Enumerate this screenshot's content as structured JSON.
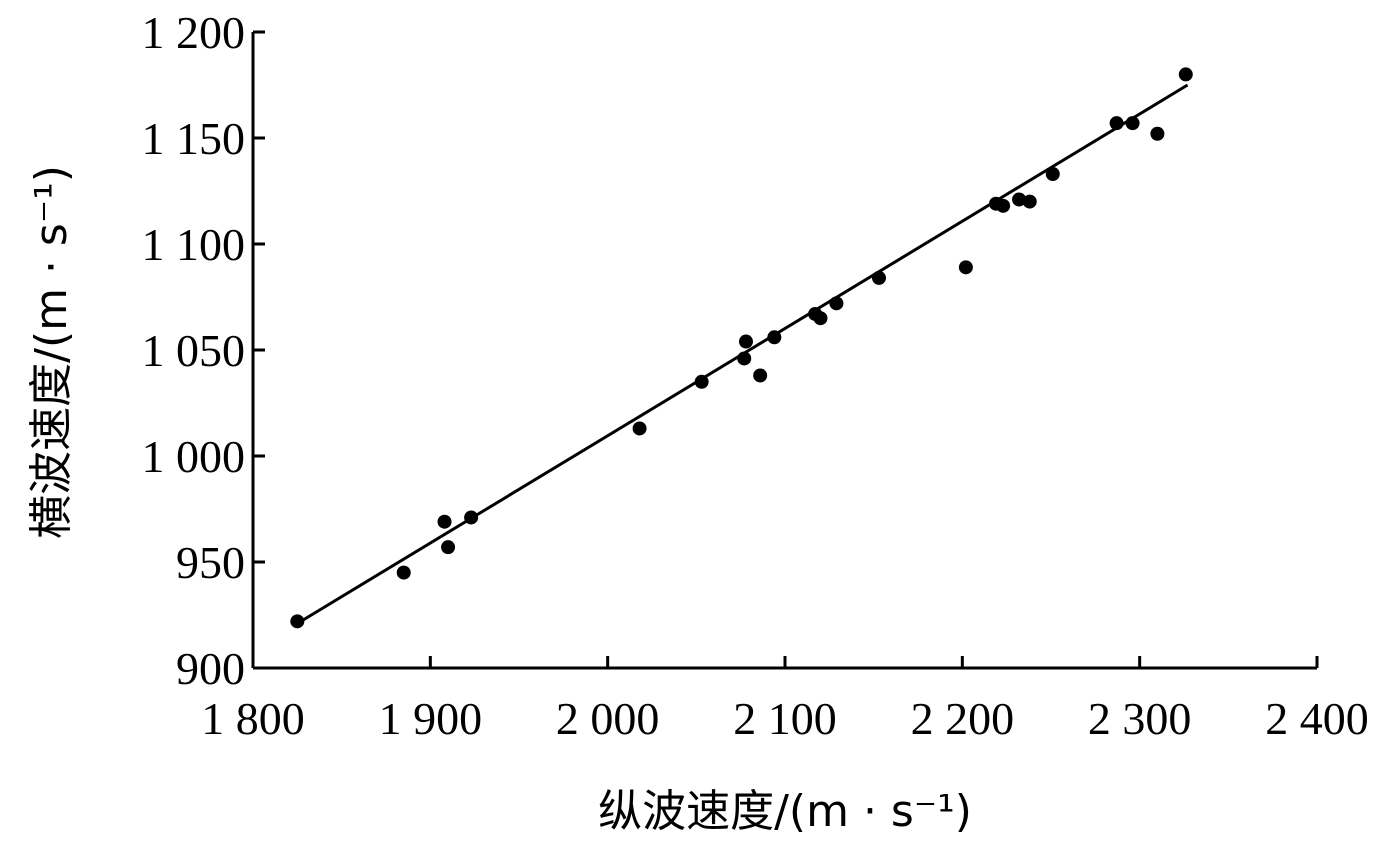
{
  "chart_data": {
    "type": "scatter",
    "title": "",
    "xlabel": "纵波速度/(m · s⁻¹)",
    "ylabel": "横波速度/(m · s⁻¹)",
    "xlim": [
      1800,
      2400
    ],
    "ylim": [
      900,
      1200
    ],
    "x_ticks": [
      1800,
      1900,
      2000,
      2100,
      2200,
      2300,
      2400
    ],
    "x_tick_labels": [
      "1 800",
      "1 900",
      "2 000",
      "2 100",
      "2 200",
      "2 300",
      "2 400"
    ],
    "y_ticks": [
      900,
      950,
      1000,
      1050,
      1100,
      1150,
      1200
    ],
    "y_tick_labels": [
      "900",
      "950",
      "1 000",
      "1 050",
      "1 100",
      "1 150",
      "1 200"
    ],
    "grid": false,
    "legend": false,
    "points": [
      {
        "x": 1825,
        "y": 922
      },
      {
        "x": 1885,
        "y": 945
      },
      {
        "x": 1908,
        "y": 969
      },
      {
        "x": 1910,
        "y": 957
      },
      {
        "x": 1923,
        "y": 971
      },
      {
        "x": 2018,
        "y": 1013
      },
      {
        "x": 2053,
        "y": 1035
      },
      {
        "x": 2077,
        "y": 1046
      },
      {
        "x": 2078,
        "y": 1054
      },
      {
        "x": 2086,
        "y": 1038
      },
      {
        "x": 2094,
        "y": 1056
      },
      {
        "x": 2117,
        "y": 1067
      },
      {
        "x": 2120,
        "y": 1065
      },
      {
        "x": 2129,
        "y": 1072
      },
      {
        "x": 2153,
        "y": 1084
      },
      {
        "x": 2202,
        "y": 1089
      },
      {
        "x": 2219,
        "y": 1119
      },
      {
        "x": 2223,
        "y": 1118
      },
      {
        "x": 2232,
        "y": 1121
      },
      {
        "x": 2238,
        "y": 1120
      },
      {
        "x": 2251,
        "y": 1133
      },
      {
        "x": 2287,
        "y": 1157
      },
      {
        "x": 2296,
        "y": 1157
      },
      {
        "x": 2310,
        "y": 1152
      },
      {
        "x": 2326,
        "y": 1180
      }
    ],
    "fit_line": {
      "x": [
        1825,
        2327
      ],
      "y": [
        921,
        1175
      ]
    },
    "colors": {
      "marker": "#000000",
      "line": "#000000",
      "axis": "#000000"
    }
  }
}
